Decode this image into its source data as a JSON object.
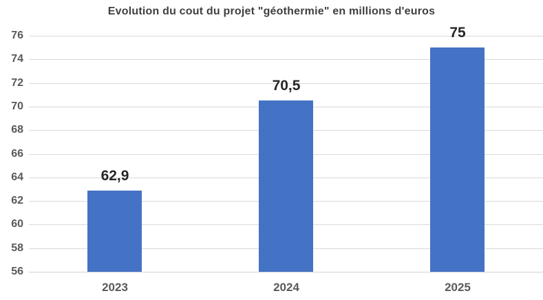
{
  "chart_data": {
    "type": "bar",
    "title": "Evolution du cout du projet \"géothermie\" en millions d'euros",
    "categories": [
      "2023",
      "2024",
      "2025"
    ],
    "values": [
      62.9,
      70.5,
      75
    ],
    "value_labels": [
      "62,9",
      "70,5",
      "75"
    ],
    "xlabel": "",
    "ylabel": "",
    "ylim": [
      56,
      76
    ],
    "ytick_step": 2,
    "yticks": [
      56,
      58,
      60,
      62,
      64,
      66,
      68,
      70,
      72,
      74,
      76
    ],
    "grid": true,
    "legend": false,
    "colors": {
      "bar": "#4472C4",
      "gridline": "#D9D9D9",
      "axis_line": "#D2D2D2",
      "title": "#404040",
      "tick_label": "#595959",
      "value_label": "#262626"
    }
  }
}
